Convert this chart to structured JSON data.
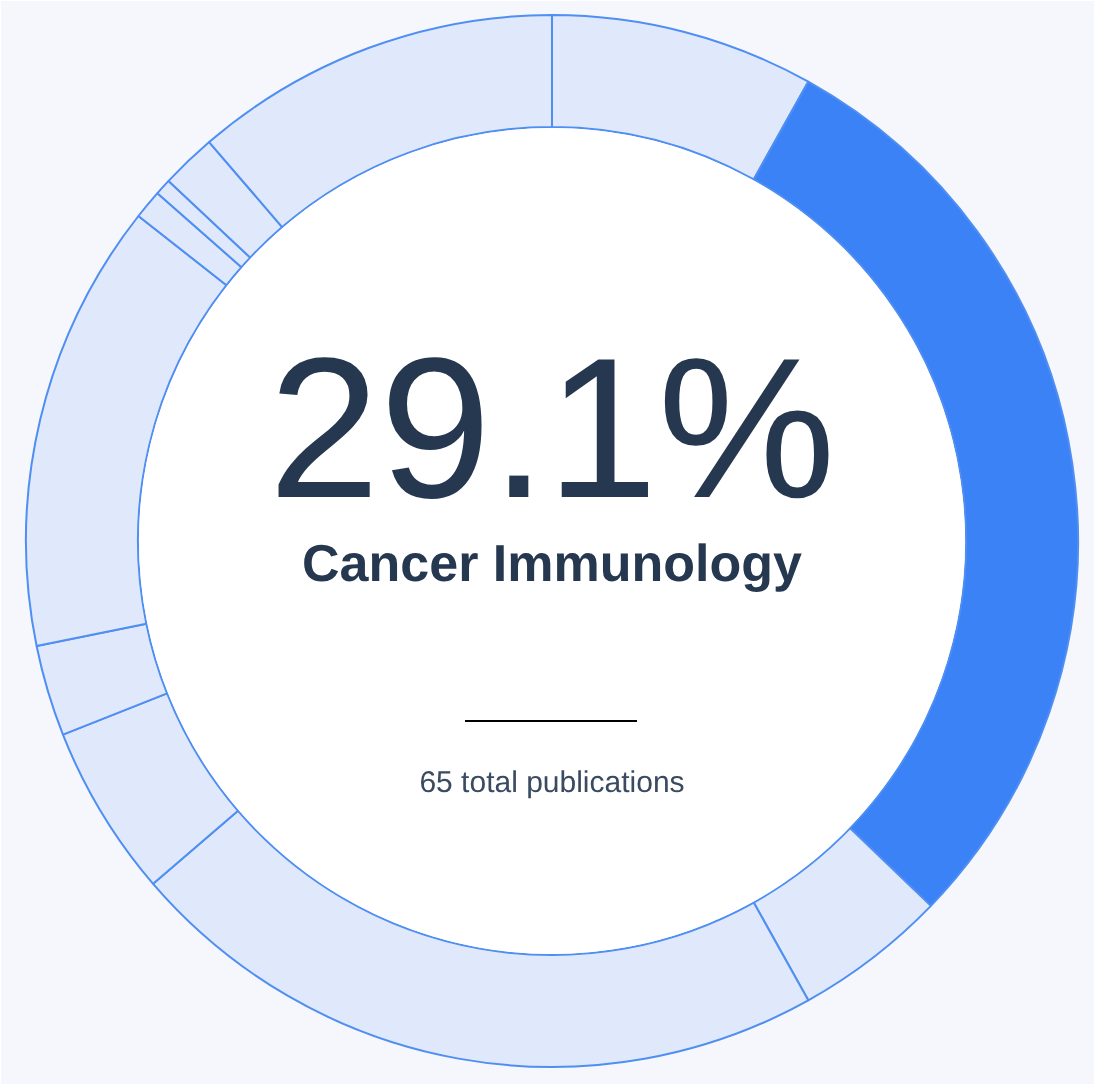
{
  "chart_data": {
    "type": "donut",
    "categories": [
      null,
      null,
      null,
      null,
      null,
      null,
      null,
      null,
      null,
      null,
      null
    ],
    "values": [
      8.1,
      29.1,
      4.7,
      21.8,
      5.3,
      2.8,
      13.8,
      0.9,
      0.5,
      1.7,
      11.3
    ],
    "colors": [
      "#dfe9fb",
      "#3b82f6",
      "#dfe9fb",
      "#dfe9fb",
      "#dfe9fb",
      "#dfe9fb",
      "#dfe9fb",
      "#dfe9fb",
      "#dfe9fb",
      "#dfe9fb",
      "#dfe9fb"
    ],
    "annotations": [
      "29.1%",
      "Cancer Immunology",
      "65 total publications"
    ]
  }
}
